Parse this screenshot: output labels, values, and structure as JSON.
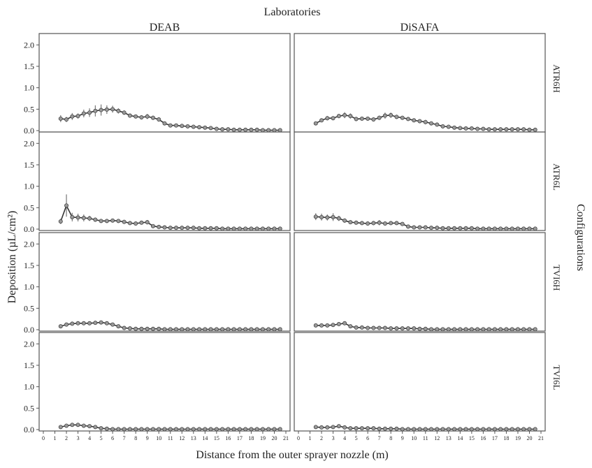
{
  "labels": {
    "top_title": "Laboratories",
    "right_title": "Configurations",
    "xlabel": "Distance from the outer sprayer nozzle (m)",
    "ylabel": "Deposition (µL/cm²)"
  },
  "chart_data": {
    "type": "line",
    "facets": {
      "columns": [
        "DEAB",
        "DiSAFA"
      ],
      "rows": [
        "ATR6H",
        "ATR6L",
        "TVI6H",
        "TVI6L"
      ]
    },
    "xlim": [
      0,
      21
    ],
    "ylim": [
      0,
      2.2
    ],
    "x_ticks": [
      0,
      1,
      2,
      3,
      4,
      5,
      6,
      7,
      8,
      9,
      10,
      11,
      12,
      13,
      14,
      15,
      16,
      17,
      18,
      19,
      20,
      21
    ],
    "y_ticks": [
      "0.0",
      "0.5",
      "1.0",
      "1.5",
      "2.0"
    ],
    "x": [
      1.5,
      2,
      2.5,
      3,
      3.5,
      4,
      4.5,
      5,
      5.5,
      6,
      6.5,
      7,
      7.5,
      8,
      8.5,
      9,
      9.5,
      10,
      10.5,
      11,
      11.5,
      12,
      12.5,
      13,
      13.5,
      14,
      14.5,
      15,
      15.5,
      16,
      16.5,
      17,
      17.5,
      18,
      18.5,
      19,
      19.5,
      20,
      20.5
    ],
    "panels": [
      {
        "row": "ATR6H",
        "col": "DEAB",
        "y": [
          0.28,
          0.26,
          0.33,
          0.34,
          0.4,
          0.42,
          0.46,
          0.48,
          0.49,
          0.5,
          0.46,
          0.42,
          0.35,
          0.33,
          0.31,
          0.33,
          0.3,
          0.26,
          0.17,
          0.12,
          0.12,
          0.11,
          0.1,
          0.09,
          0.08,
          0.07,
          0.06,
          0.04,
          0.03,
          0.03,
          0.02,
          0.02,
          0.02,
          0.02,
          0.02,
          0.01,
          0.01,
          0.01,
          0.01
        ],
        "err": [
          0.08,
          0.06,
          0.08,
          0.06,
          0.09,
          0.1,
          0.13,
          0.13,
          0.1,
          0.08,
          0.06,
          0.05,
          0.05,
          0.04,
          0.05,
          0.06,
          0.05,
          0.05,
          0.03,
          0.02,
          0.02,
          0.02,
          0.02,
          0.02,
          0.01,
          0.01,
          0.01,
          0.01,
          0.01,
          0.01,
          0.01,
          0.01,
          0.01,
          0.01,
          0.01,
          0.01,
          0.01,
          0.01,
          0.01
        ]
      },
      {
        "row": "ATR6H",
        "col": "DiSAFA",
        "y": [
          0.17,
          0.24,
          0.29,
          0.29,
          0.34,
          0.36,
          0.34,
          0.27,
          0.28,
          0.28,
          0.26,
          0.3,
          0.35,
          0.36,
          0.32,
          0.3,
          0.27,
          0.24,
          0.22,
          0.2,
          0.17,
          0.14,
          0.1,
          0.09,
          0.07,
          0.06,
          0.05,
          0.05,
          0.04,
          0.04,
          0.03,
          0.03,
          0.03,
          0.03,
          0.03,
          0.03,
          0.03,
          0.02,
          0.02
        ],
        "err": [
          0.03,
          0.04,
          0.05,
          0.04,
          0.05,
          0.07,
          0.06,
          0.05,
          0.04,
          0.04,
          0.04,
          0.05,
          0.07,
          0.06,
          0.05,
          0.04,
          0.04,
          0.04,
          0.04,
          0.05,
          0.03,
          0.02,
          0.02,
          0.02,
          0.01,
          0.01,
          0.01,
          0.01,
          0.01,
          0.01,
          0.01,
          0.01,
          0.01,
          0.01,
          0.01,
          0.01,
          0.01,
          0.01,
          0.01
        ]
      },
      {
        "row": "ATR6L",
        "col": "DEAB",
        "y": [
          0.18,
          0.55,
          0.28,
          0.27,
          0.26,
          0.25,
          0.22,
          0.19,
          0.19,
          0.2,
          0.19,
          0.17,
          0.14,
          0.13,
          0.15,
          0.16,
          0.07,
          0.05,
          0.04,
          0.03,
          0.03,
          0.03,
          0.03,
          0.03,
          0.02,
          0.02,
          0.02,
          0.02,
          0.01,
          0.01,
          0.01,
          0.01,
          0.01,
          0.01,
          0.01,
          0.01,
          0.01,
          0.01,
          0.01
        ],
        "err": [
          0.06,
          0.26,
          0.1,
          0.09,
          0.08,
          0.06,
          0.05,
          0.04,
          0.04,
          0.04,
          0.04,
          0.03,
          0.03,
          0.03,
          0.04,
          0.05,
          0.02,
          0.02,
          0.01,
          0.01,
          0.01,
          0.01,
          0.01,
          0.01,
          0.01,
          0.01,
          0.01,
          0.01,
          0.01,
          0.01,
          0.01,
          0.01,
          0.01,
          0.01,
          0.01,
          0.01,
          0.01,
          0.01,
          0.01
        ]
      },
      {
        "row": "ATR6L",
        "col": "DiSAFA",
        "y": [
          0.29,
          0.28,
          0.27,
          0.28,
          0.25,
          0.2,
          0.16,
          0.15,
          0.14,
          0.13,
          0.14,
          0.15,
          0.13,
          0.14,
          0.14,
          0.12,
          0.06,
          0.04,
          0.04,
          0.04,
          0.03,
          0.03,
          0.02,
          0.02,
          0.02,
          0.02,
          0.02,
          0.02,
          0.01,
          0.01,
          0.01,
          0.01,
          0.01,
          0.01,
          0.01,
          0.01,
          0.01,
          0.01,
          0.01
        ],
        "err": [
          0.08,
          0.08,
          0.07,
          0.09,
          0.06,
          0.05,
          0.04,
          0.04,
          0.03,
          0.04,
          0.05,
          0.06,
          0.04,
          0.04,
          0.03,
          0.03,
          0.02,
          0.01,
          0.01,
          0.01,
          0.01,
          0.01,
          0.01,
          0.01,
          0.01,
          0.01,
          0.01,
          0.01,
          0.01,
          0.01,
          0.01,
          0.01,
          0.01,
          0.01,
          0.01,
          0.01,
          0.01,
          0.01,
          0.01
        ]
      },
      {
        "row": "TVI6H",
        "col": "DEAB",
        "y": [
          0.08,
          0.12,
          0.14,
          0.15,
          0.15,
          0.15,
          0.16,
          0.17,
          0.15,
          0.12,
          0.08,
          0.04,
          0.03,
          0.02,
          0.02,
          0.02,
          0.02,
          0.02,
          0.01,
          0.01,
          0.01,
          0.01,
          0.01,
          0.01,
          0.01,
          0.01,
          0.01,
          0.01,
          0.01,
          0.01,
          0.01,
          0.01,
          0.01,
          0.01,
          0.01,
          0.01,
          0.01,
          0.01,
          0.01
        ],
        "err": [
          0.02,
          0.02,
          0.03,
          0.03,
          0.02,
          0.03,
          0.04,
          0.03,
          0.03,
          0.02,
          0.02,
          0.01,
          0.01,
          0.01,
          0.01,
          0.01,
          0.01,
          0.01,
          0.01,
          0.01,
          0.01,
          0.01,
          0.01,
          0.01,
          0.01,
          0.01,
          0.01,
          0.01,
          0.01,
          0.01,
          0.01,
          0.01,
          0.01,
          0.01,
          0.01,
          0.01,
          0.01,
          0.01,
          0.01
        ]
      },
      {
        "row": "TVI6H",
        "col": "DiSAFA",
        "y": [
          0.1,
          0.1,
          0.1,
          0.11,
          0.13,
          0.15,
          0.08,
          0.05,
          0.05,
          0.04,
          0.04,
          0.04,
          0.04,
          0.03,
          0.03,
          0.03,
          0.03,
          0.03,
          0.02,
          0.02,
          0.01,
          0.01,
          0.01,
          0.01,
          0.01,
          0.01,
          0.01,
          0.01,
          0.01,
          0.01,
          0.01,
          0.01,
          0.01,
          0.01,
          0.01,
          0.01,
          0.01,
          0.01,
          0.01
        ],
        "err": [
          0.02,
          0.02,
          0.02,
          0.02,
          0.03,
          0.04,
          0.02,
          0.01,
          0.01,
          0.01,
          0.01,
          0.01,
          0.01,
          0.01,
          0.01,
          0.01,
          0.01,
          0.01,
          0.01,
          0.01,
          0.01,
          0.01,
          0.01,
          0.01,
          0.01,
          0.01,
          0.01,
          0.01,
          0.01,
          0.01,
          0.01,
          0.01,
          0.01,
          0.01,
          0.01,
          0.01,
          0.01,
          0.01,
          0.01
        ]
      },
      {
        "row": "TVI6L",
        "col": "DEAB",
        "y": [
          0.06,
          0.09,
          0.11,
          0.11,
          0.09,
          0.08,
          0.06,
          0.03,
          0.02,
          0.01,
          0.01,
          0.01,
          0.01,
          0.01,
          0.01,
          0.01,
          0.01,
          0.01,
          0.01,
          0.01,
          0.01,
          0.01,
          0.01,
          0.01,
          0.01,
          0.01,
          0.01,
          0.01,
          0.01,
          0.01,
          0.01,
          0.01,
          0.01,
          0.01,
          0.01,
          0.01,
          0.01,
          0.01,
          0.01
        ],
        "err": [
          0.02,
          0.02,
          0.03,
          0.02,
          0.02,
          0.02,
          0.01,
          0.01,
          0.01,
          0.01,
          0.01,
          0.01,
          0.01,
          0.01,
          0.01,
          0.01,
          0.01,
          0.01,
          0.01,
          0.01,
          0.01,
          0.01,
          0.01,
          0.01,
          0.01,
          0.01,
          0.01,
          0.01,
          0.01,
          0.01,
          0.01,
          0.01,
          0.01,
          0.01,
          0.01,
          0.01,
          0.01,
          0.01,
          0.01
        ]
      },
      {
        "row": "TVI6L",
        "col": "DiSAFA",
        "y": [
          0.06,
          0.05,
          0.05,
          0.06,
          0.08,
          0.05,
          0.03,
          0.03,
          0.03,
          0.03,
          0.03,
          0.02,
          0.02,
          0.02,
          0.02,
          0.01,
          0.01,
          0.01,
          0.01,
          0.01,
          0.01,
          0.01,
          0.01,
          0.01,
          0.01,
          0.01,
          0.01,
          0.01,
          0.01,
          0.01,
          0.01,
          0.01,
          0.01,
          0.01,
          0.01,
          0.01,
          0.01,
          0.01,
          0.01
        ],
        "err": [
          0.02,
          0.02,
          0.02,
          0.02,
          0.03,
          0.02,
          0.01,
          0.01,
          0.01,
          0.01,
          0.01,
          0.01,
          0.01,
          0.01,
          0.01,
          0.01,
          0.01,
          0.01,
          0.01,
          0.01,
          0.01,
          0.01,
          0.01,
          0.01,
          0.01,
          0.01,
          0.01,
          0.01,
          0.01,
          0.01,
          0.01,
          0.01,
          0.01,
          0.01,
          0.01,
          0.01,
          0.01,
          0.01,
          0.01
        ]
      }
    ],
    "colors": {
      "line": "#333333",
      "marker": "#9a9a9a",
      "panel_border": "#555555"
    }
  }
}
